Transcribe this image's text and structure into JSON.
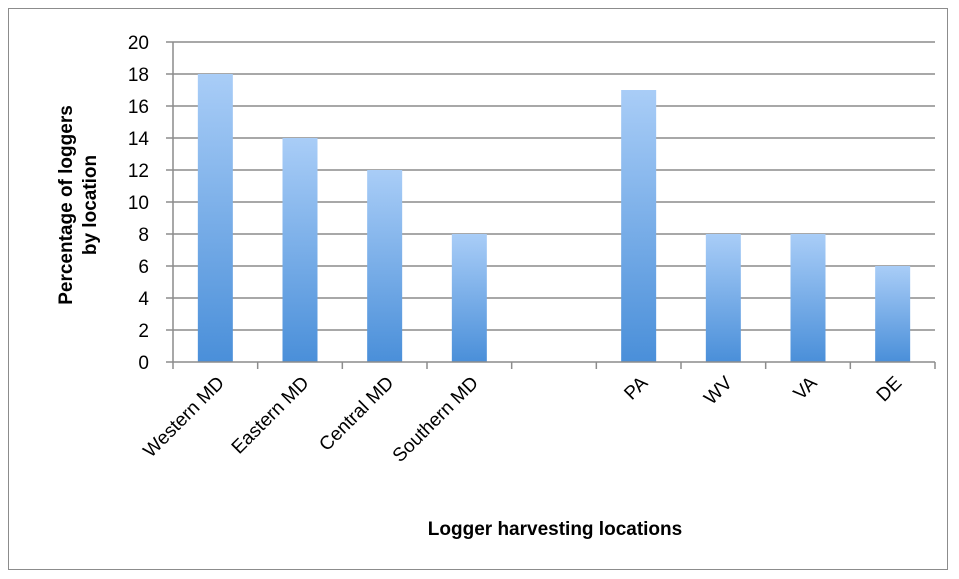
{
  "chart_data": {
    "type": "bar",
    "categories": [
      "Western MD",
      "Eastern MD",
      "Central MD",
      "Southern MD",
      "",
      "PA",
      "WV",
      "VA",
      "DE"
    ],
    "values": [
      18,
      14,
      12,
      8,
      null,
      17,
      8,
      8,
      6
    ],
    "xlabel": "Logger harvesting locations",
    "ylabel": "Percentage of loggers by location",
    "ylabel_lines": [
      "Percentage of loggers",
      "by location"
    ],
    "ylim": [
      0,
      20
    ],
    "yticks": [
      0,
      2,
      4,
      6,
      8,
      10,
      12,
      14,
      16,
      18,
      20
    ],
    "grid": true,
    "legend": "none",
    "bar_color_top": "#a9cdf7",
    "bar_color_bottom": "#4a8fd9",
    "grid_color": "#8c8c8c"
  }
}
